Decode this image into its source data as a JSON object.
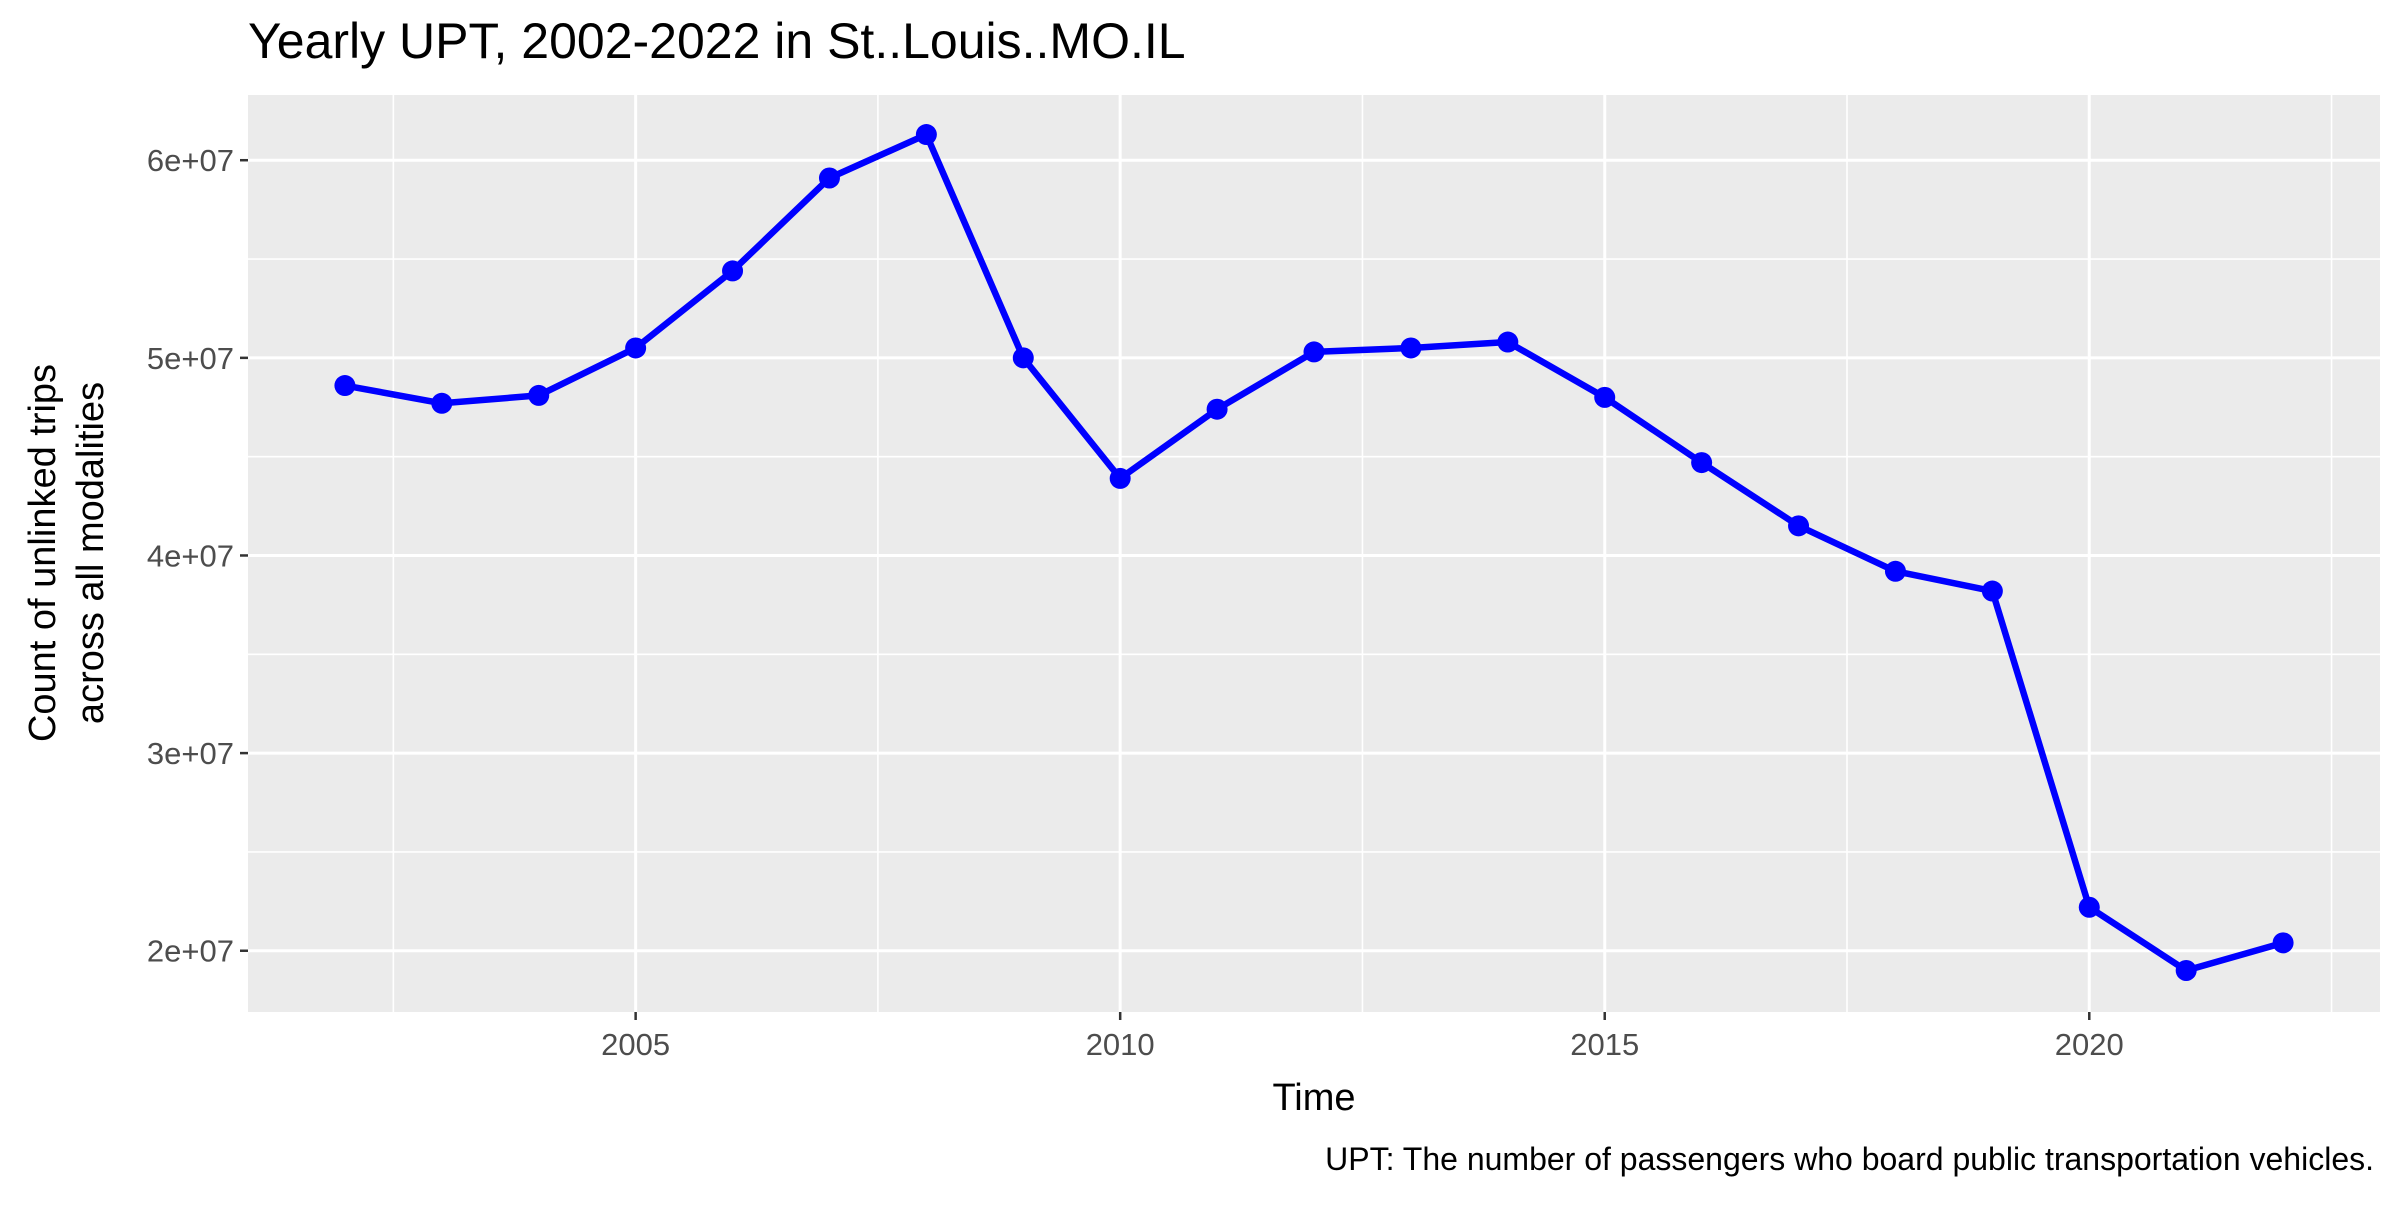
{
  "chart_data": {
    "type": "line",
    "title": "Yearly UPT, 2002-2022 in St..Louis..MO.IL",
    "xlabel": "Time",
    "ylabel_lines": [
      "Count of unlinked trips",
      "across all modalities"
    ],
    "caption": "UPT: The number of passengers who board public transportation vehicles.",
    "x_ticks": [
      2005,
      2010,
      2015,
      2020
    ],
    "x_tick_labels": [
      "2005",
      "2010",
      "2015",
      "2020"
    ],
    "y_ticks": [
      20000000,
      30000000,
      40000000,
      50000000,
      60000000
    ],
    "y_tick_labels": [
      "2e+07",
      "3e+07",
      "4e+07",
      "5e+07",
      "6e+07"
    ],
    "xlim": [
      2001,
      2023
    ],
    "ylim": [
      16900000,
      63300000
    ],
    "grid": true,
    "series_color": "#0000ff",
    "panel_background": "#ebebeb",
    "series": [
      {
        "x": [
          2002,
          2003,
          2004,
          2005,
          2006,
          2007,
          2008,
          2009,
          2010,
          2011,
          2012,
          2013,
          2014,
          2015,
          2016,
          2017,
          2018,
          2019,
          2020,
          2021,
          2022
        ],
        "values": [
          48600000,
          47700000,
          48100000,
          50500000,
          54400000,
          59100000,
          61300000,
          50000000,
          43900000,
          47400000,
          50300000,
          50500000,
          50800000,
          48000000,
          44700000,
          41500000,
          39200000,
          38200000,
          22200000,
          19000000,
          20400000
        ]
      }
    ]
  }
}
